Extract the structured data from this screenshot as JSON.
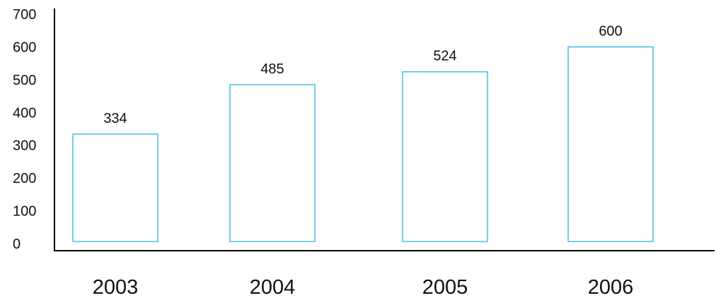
{
  "chart_data": {
    "type": "bar",
    "categories": [
      "2003",
      "2004",
      "2005",
      "2006"
    ],
    "values": [
      334,
      485,
      524,
      600
    ],
    "data_labels": [
      "334",
      "485",
      "524",
      "600"
    ],
    "title": "",
    "xlabel": "",
    "ylabel": "",
    "ylim": [
      0,
      700
    ],
    "yticks": [
      "0",
      "100",
      "200",
      "300",
      "400",
      "500",
      "600",
      "700"
    ],
    "grid": false,
    "legend": "none",
    "colors": {
      "bar_stroke": "#2bb3de",
      "bar_fill": "#ffffff",
      "axis": "#000000"
    }
  }
}
